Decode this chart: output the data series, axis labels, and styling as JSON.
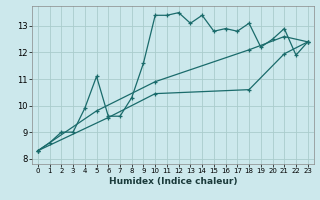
{
  "xlabel": "Humidex (Indice chaleur)",
  "bg_color": "#cce8ec",
  "grid_color": "#aacccc",
  "line_color": "#1a6b6b",
  "xlim": [
    -0.5,
    23.5
  ],
  "ylim": [
    7.8,
    13.75
  ],
  "xticks": [
    0,
    1,
    2,
    3,
    4,
    5,
    6,
    7,
    8,
    9,
    10,
    11,
    12,
    13,
    14,
    15,
    16,
    17,
    18,
    19,
    20,
    21,
    22,
    23
  ],
  "yticks": [
    8,
    9,
    10,
    11,
    12,
    13
  ],
  "series1_x": [
    0,
    1,
    2,
    3,
    4,
    5,
    6,
    7,
    8,
    9,
    10,
    11,
    12,
    13,
    14,
    15,
    16,
    17,
    18,
    19,
    20,
    21,
    22,
    23
  ],
  "series1_y": [
    8.3,
    8.6,
    9.0,
    9.0,
    9.9,
    11.1,
    9.6,
    9.6,
    10.3,
    11.6,
    13.4,
    13.4,
    13.5,
    13.1,
    13.4,
    12.8,
    12.9,
    12.8,
    13.1,
    12.2,
    12.5,
    12.9,
    11.9,
    12.4
  ],
  "series2_x": [
    0,
    5,
    10,
    18,
    21,
    23
  ],
  "series2_y": [
    8.3,
    9.8,
    10.9,
    12.1,
    12.6,
    12.4
  ],
  "series3_x": [
    0,
    6,
    10,
    18,
    21,
    23
  ],
  "series3_y": [
    8.3,
    9.55,
    10.45,
    10.6,
    11.95,
    12.4
  ]
}
